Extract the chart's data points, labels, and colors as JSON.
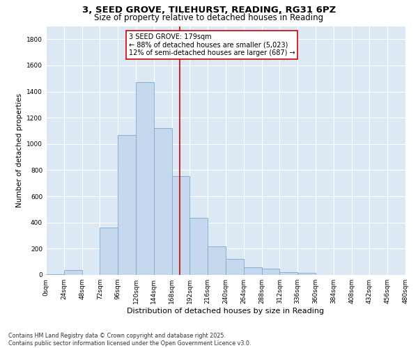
{
  "title": "3, SEED GROVE, TILEHURST, READING, RG31 6PZ",
  "subtitle": "Size of property relative to detached houses in Reading",
  "xlabel": "Distribution of detached houses by size in Reading",
  "ylabel": "Number of detached properties",
  "bar_color": "#c5d8ed",
  "bar_edge_color": "#7aaacc",
  "background_color": "#dce9f5",
  "grid_color": "#ffffff",
  "vline_x": 179,
  "vline_color": "#cc0000",
  "annotation_text": "3 SEED GROVE: 179sqm\n← 88% of detached houses are smaller (5,023)\n12% of semi-detached houses are larger (687) →",
  "annotation_box_color": "#cc0000",
  "bin_edges": [
    0,
    24,
    48,
    72,
    96,
    120,
    144,
    168,
    192,
    216,
    240,
    264,
    288,
    312,
    336,
    360,
    384,
    408,
    432,
    456,
    480
  ],
  "bar_heights": [
    5,
    35,
    0,
    360,
    1070,
    1470,
    1120,
    755,
    435,
    220,
    120,
    60,
    50,
    20,
    15,
    0,
    0,
    0,
    0,
    0
  ],
  "ylim": [
    0,
    1900
  ],
  "yticks": [
    0,
    200,
    400,
    600,
    800,
    1000,
    1200,
    1400,
    1600,
    1800
  ],
  "footer_text": "Contains HM Land Registry data © Crown copyright and database right 2025.\nContains public sector information licensed under the Open Government Licence v3.0.",
  "title_fontsize": 9.5,
  "subtitle_fontsize": 8.5,
  "xlabel_fontsize": 8,
  "ylabel_fontsize": 7.5,
  "tick_fontsize": 6.5,
  "footer_fontsize": 5.8,
  "annot_fontsize": 7.0
}
